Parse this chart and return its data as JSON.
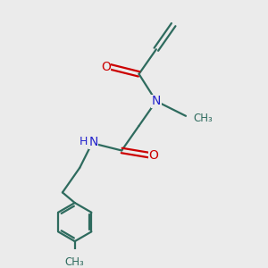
{
  "background_color": "#ebebeb",
  "bond_color": "#2e6b5e",
  "N_color": "#2323cc",
  "O_color": "#cc0000",
  "line_width": 1.6,
  "fig_size": [
    3.0,
    3.0
  ],
  "dpi": 100,
  "xlim": [
    0,
    10
  ],
  "ylim": [
    0,
    10
  ]
}
